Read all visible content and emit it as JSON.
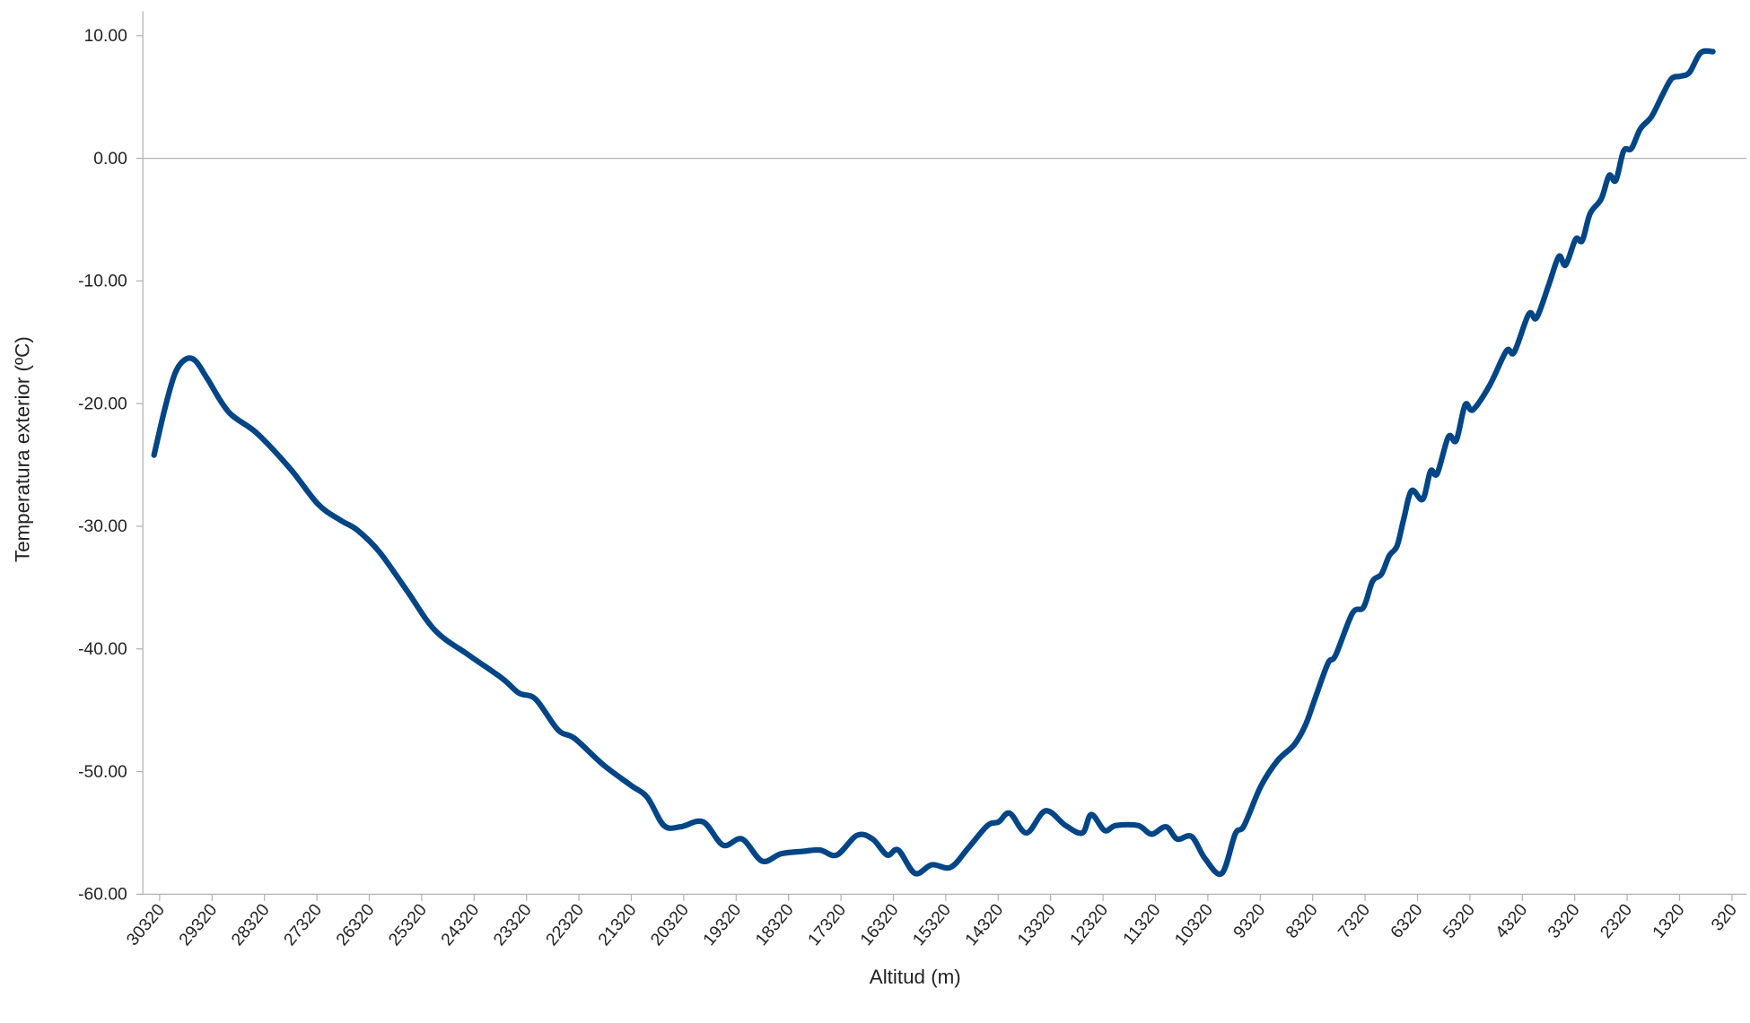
{
  "chart_data": {
    "type": "line",
    "x_label": "Altitud (m)",
    "y_label": "Temperatura exterior (ºC)",
    "x": [
      30427,
      30214,
      30023,
      29831,
      29640,
      29405,
      29000,
      28468,
      27830,
      27297,
      26872,
      26552,
      26126,
      25594,
      25062,
      24423,
      23785,
      23465,
      23146,
      22720,
      22401,
      21869,
      21336,
      21017,
      20698,
      20378,
      19953,
      19570,
      19208,
      18825,
      18463,
      18037,
      17718,
      17399,
      17015,
      16717,
      16440,
      16227,
      15908,
      15588,
      15227,
      14886,
      14524,
      14311,
      14098,
      13779,
      13417,
      13034,
      12715,
      12544,
      12289,
      12076,
      11650,
      11395,
      11118,
      10905,
      10629,
      10373,
      10054,
      9798,
      9628,
      9309,
      8989,
      8670,
      8457,
      8287,
      8031,
      7881,
      7562,
      7349,
      7179,
      7008,
      6859,
      6710,
      6582,
      6433,
      6220,
      6071,
      5943,
      5730,
      5581,
      5411,
      5262,
      4942,
      4623,
      4474,
      4197,
      4048,
      3814,
      3622,
      3494,
      3303,
      3175,
      3026,
      2813,
      2664,
      2536,
      2387,
      2238,
      2068,
      1855,
      1642,
      1471,
      1301,
      1131,
      918,
      684
    ],
    "series": [
      {
        "name": "Temperatura exterior (ºC)",
        "color": "#004586",
        "values": [
          -24.2,
          -20.3,
          -17.5,
          -16.4,
          -16.5,
          -18.0,
          -20.7,
          -22.4,
          -25.3,
          -28.2,
          -29.5,
          -30.3,
          -32.1,
          -35.3,
          -38.5,
          -40.5,
          -42.4,
          -43.6,
          -44.1,
          -46.6,
          -47.3,
          -49.4,
          -51.1,
          -52.1,
          -54.4,
          -54.5,
          -54.1,
          -56.0,
          -55.5,
          -57.3,
          -56.7,
          -56.5,
          -56.4,
          -56.8,
          -55.2,
          -55.5,
          -56.8,
          -56.4,
          -58.3,
          -57.6,
          -57.8,
          -56.2,
          -54.4,
          -54.1,
          -53.4,
          -55.0,
          -53.2,
          -54.4,
          -55.0,
          -53.5,
          -54.8,
          -54.4,
          -54.4,
          -55.1,
          -54.5,
          -55.5,
          -55.3,
          -57.1,
          -58.3,
          -55.1,
          -54.4,
          -51.2,
          -49.1,
          -47.8,
          -46.2,
          -44.2,
          -41.2,
          -40.5,
          -37.1,
          -36.6,
          -34.5,
          -33.9,
          -32.4,
          -31.6,
          -29.4,
          -27.1,
          -27.8,
          -25.5,
          -25.7,
          -22.7,
          -23.0,
          -20.1,
          -20.5,
          -18.5,
          -15.7,
          -15.8,
          -12.7,
          -13.0,
          -10.3,
          -8.0,
          -8.7,
          -6.6,
          -6.7,
          -4.5,
          -3.3,
          -1.4,
          -1.8,
          0.6,
          0.8,
          2.4,
          3.4,
          5.2,
          6.5,
          6.7,
          7.0,
          8.6,
          8.7
        ]
      }
    ],
    "xlim": [
      30640,
      40
    ],
    "xticks": [
      30320,
      29320,
      28320,
      27320,
      26320,
      25320,
      24320,
      23320,
      22320,
      21320,
      20320,
      19320,
      18320,
      17320,
      16320,
      15320,
      14320,
      13320,
      12320,
      11320,
      10320,
      9320,
      8320,
      7320,
      6320,
      5320,
      4320,
      3320,
      2320,
      1320,
      320
    ],
    "ylim": [
      -60,
      12
    ],
    "yticks": [
      {
        "value": -60,
        "label": "-60.00"
      },
      {
        "value": -50,
        "label": "-50.00"
      },
      {
        "value": -40,
        "label": "-40.00"
      },
      {
        "value": -30,
        "label": "-30.00"
      },
      {
        "value": -20,
        "label": "-20.00"
      },
      {
        "value": -10,
        "label": "-10.00"
      },
      {
        "value": 0,
        "label": "0.00"
      },
      {
        "value": 10,
        "label": "10.00"
      }
    ],
    "zero_line": true,
    "grid": false,
    "line_width": 5
  }
}
